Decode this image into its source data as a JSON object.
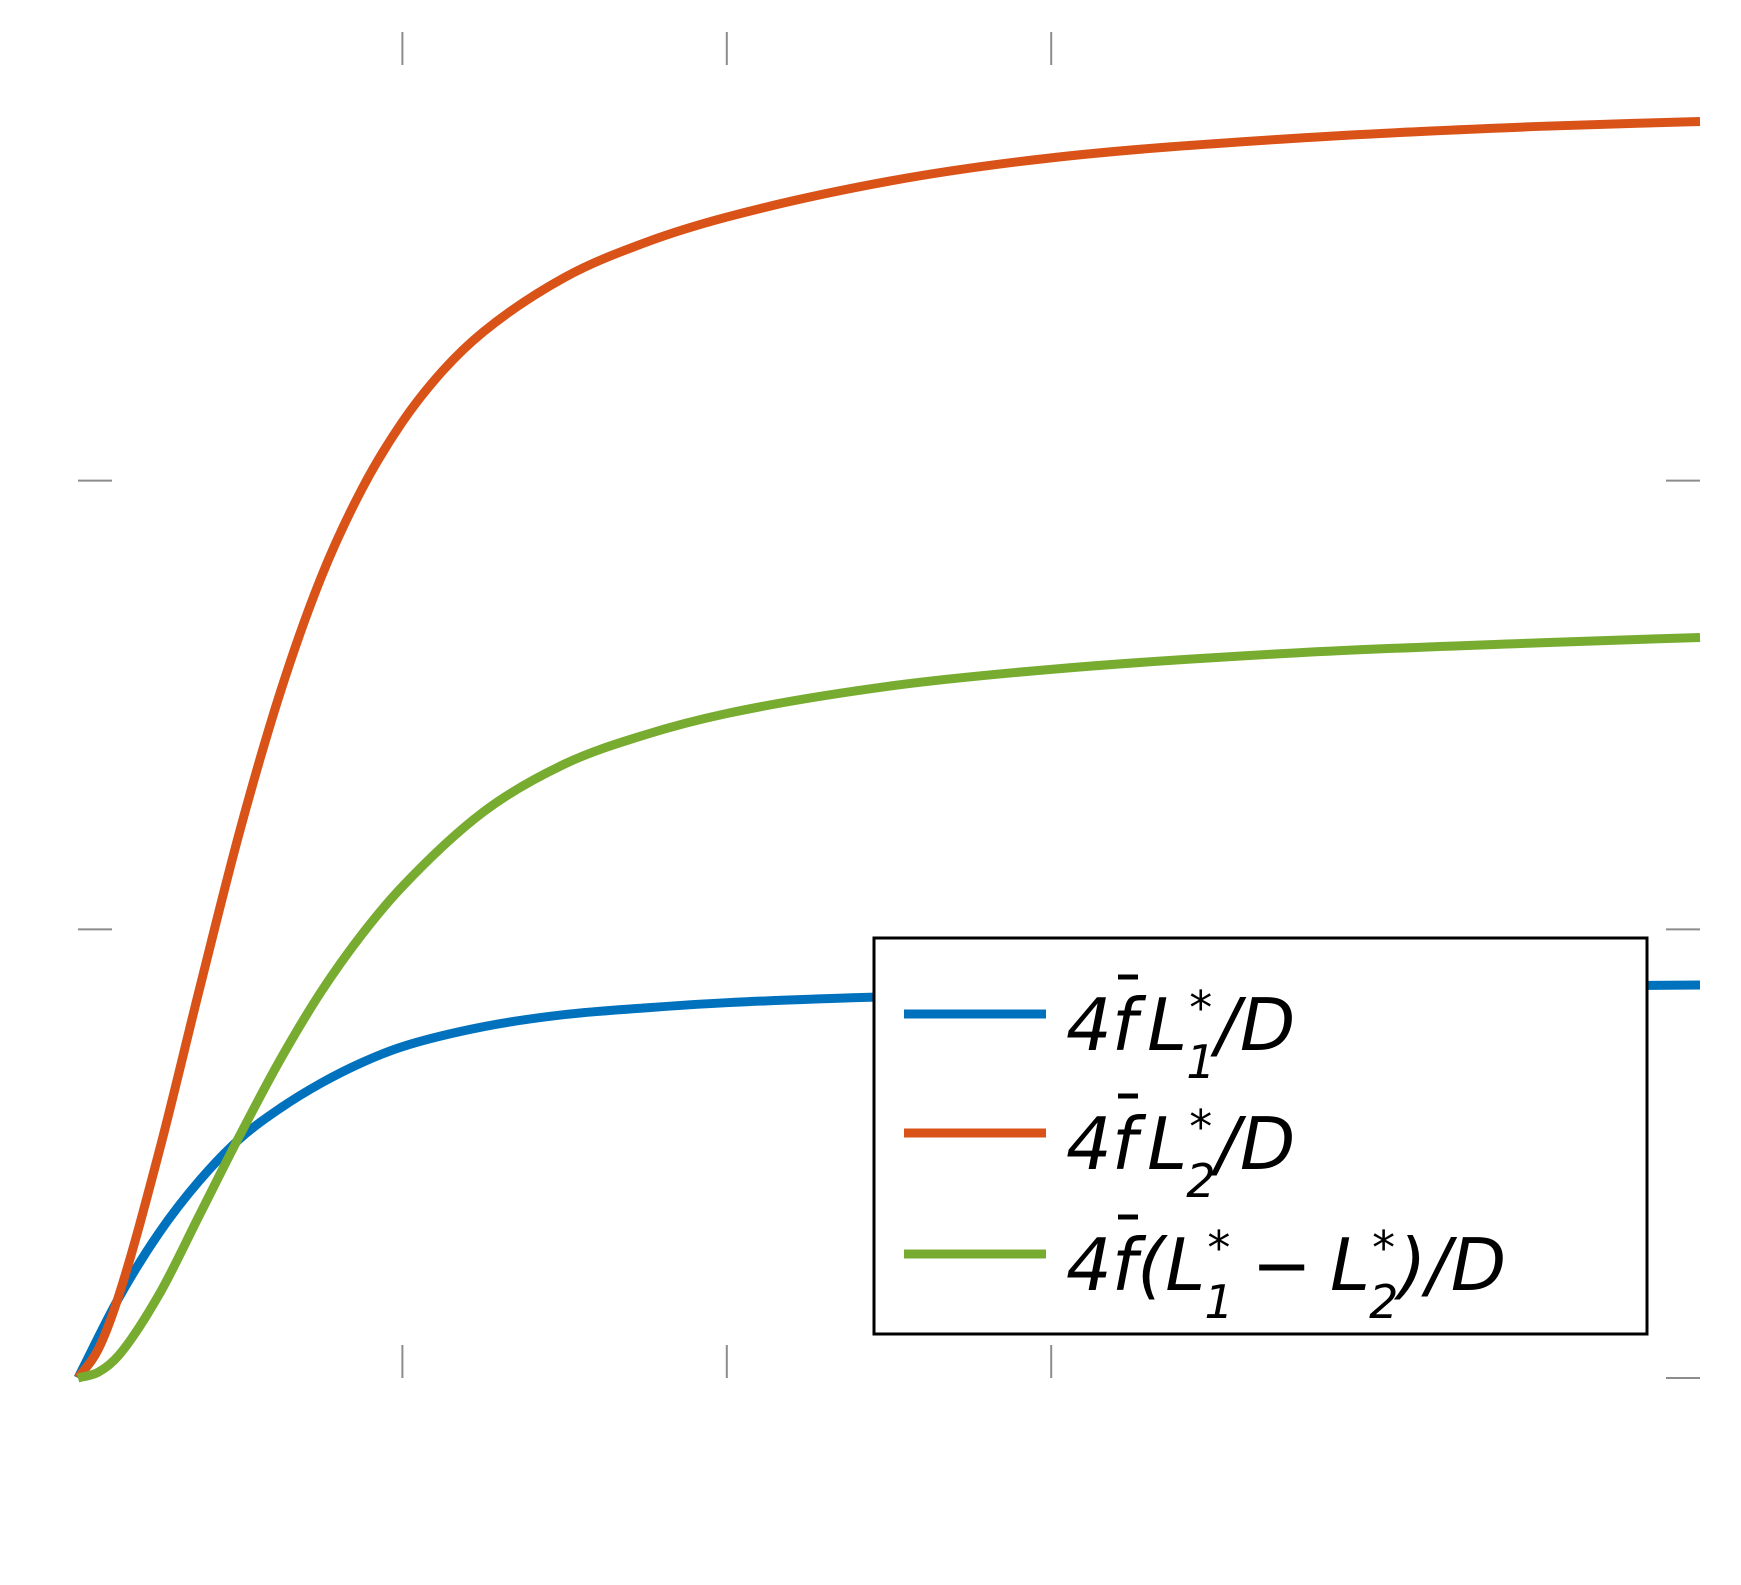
{
  "chart_data": {
    "type": "line",
    "title": "",
    "xlabel": "",
    "ylabel": "",
    "xlim": [
      0,
      2
    ],
    "ylim": [
      0,
      0.6
    ],
    "x_ticks": [
      0.4,
      0.8,
      1.2
    ],
    "y_ticks": [
      0.2,
      0.4
    ],
    "tick_labels_visible": false,
    "grid": false,
    "legend_placement": "bottom-right",
    "series": [
      {
        "name": "4f̄L₁*/D",
        "legend": {
          "pre": "4",
          "f": "f",
          "L": "L",
          "sup": "*",
          "sub": "1",
          "post": "/D"
        },
        "color": "#0072BD",
        "x": [
          0,
          0.05,
          0.1,
          0.15,
          0.2,
          0.25,
          0.3,
          0.35,
          0.4,
          0.5,
          0.6,
          0.7,
          0.8,
          1.0,
          1.2,
          1.5,
          1.8,
          2.0
        ],
        "y": [
          0,
          0.0355,
          0.0647,
          0.0881,
          0.1068,
          0.1204,
          0.1315,
          0.1406,
          0.1477,
          0.1566,
          0.162,
          0.165,
          0.1673,
          0.17,
          0.1717,
          0.1734,
          0.1746,
          0.1752
        ]
      },
      {
        "name": "4f̄L₂*/D",
        "legend": {
          "pre": "4",
          "f": "f",
          "L": "L",
          "sup": "*",
          "sub": "2",
          "post": "/D"
        },
        "color": "#D95319",
        "x": [
          0,
          0.025,
          0.05,
          0.1,
          0.15,
          0.2,
          0.25,
          0.3,
          0.35,
          0.4,
          0.45,
          0.5,
          0.6,
          0.7,
          0.8,
          1.0,
          1.2,
          1.5,
          1.8,
          2.0
        ],
        "y": [
          0,
          0.0128,
          0.0364,
          0.1009,
          0.1737,
          0.2445,
          0.3063,
          0.3571,
          0.3962,
          0.4262,
          0.4491,
          0.4664,
          0.4906,
          0.5062,
          0.5175,
          0.5335,
          0.5439,
          0.5526,
          0.5579,
          0.5601
        ]
      },
      {
        "name": "4f̄(L₁* − L₂*)/D",
        "legend": {
          "pre": "4",
          "f": "f",
          "open": "(",
          "L": "L",
          "sup": "*",
          "sub": "1",
          "minus": "−",
          "L2": "L",
          "sup2": "*",
          "sub2": "2",
          "close": ")",
          "post": "/D"
        },
        "color": "#77AC30",
        "x": [
          0,
          0.025,
          0.05,
          0.1,
          0.15,
          0.2,
          0.25,
          0.3,
          0.35,
          0.4,
          0.5,
          0.6,
          0.7,
          0.8,
          1.0,
          1.2,
          1.5,
          1.8,
          2.0
        ],
        "y": [
          0,
          0.0026,
          0.01,
          0.0372,
          0.0728,
          0.1085,
          0.1423,
          0.1723,
          0.1977,
          0.2191,
          0.2524,
          0.2737,
          0.2868,
          0.2962,
          0.3084,
          0.3159,
          0.3232,
          0.3277,
          0.3301
        ]
      }
    ]
  }
}
